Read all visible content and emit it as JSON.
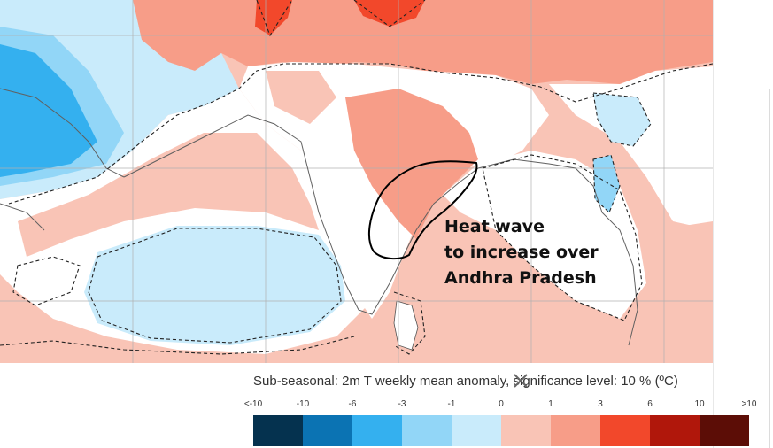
{
  "annotation": {
    "lines": [
      "Heat wave",
      "to increase over",
      "Andhra Pradesh"
    ]
  },
  "legend": {
    "title": "Sub-seasonal: 2m T weekly mean anomaly, significance level: 10 % (ºC)",
    "ticks": [
      "<-10",
      "-10",
      "-6",
      "-3",
      "-1",
      "0",
      "1",
      "3",
      "6",
      "10",
      ">10"
    ],
    "bins": [
      {
        "range": "<-10 to -10",
        "color": "#05324f"
      },
      {
        "range": "-10 to -6",
        "color": "#0b73b3"
      },
      {
        "range": "-6 to -3",
        "color": "#34b0ef"
      },
      {
        "range": "-3 to -1",
        "color": "#92d6f7"
      },
      {
        "range": "-1 to 0",
        "color": "#c9ebfb"
      },
      {
        "range": "0 to 1",
        "color": "#f9c4b6"
      },
      {
        "range": "1 to 3",
        "color": "#f79d88"
      },
      {
        "range": "3 to 6",
        "color": "#f2482b"
      },
      {
        "range": "6 to 10",
        "color": "#b0170b"
      },
      {
        "range": "10 to >10",
        "color": "#5c0d06"
      }
    ],
    "close_icon": "close-icon"
  },
  "map": {
    "colors": {
      "ocean_default": "#f9c4b6",
      "neutral_white": "#ffffff",
      "cool_light": "#c9ebfb",
      "cool_medium": "#92d6f7",
      "cool_strong": "#34b0ef",
      "warm_light": "#f9c4b6",
      "warm_medium": "#f79d88",
      "warm_strong": "#f2482b",
      "outline": "#000000"
    }
  }
}
